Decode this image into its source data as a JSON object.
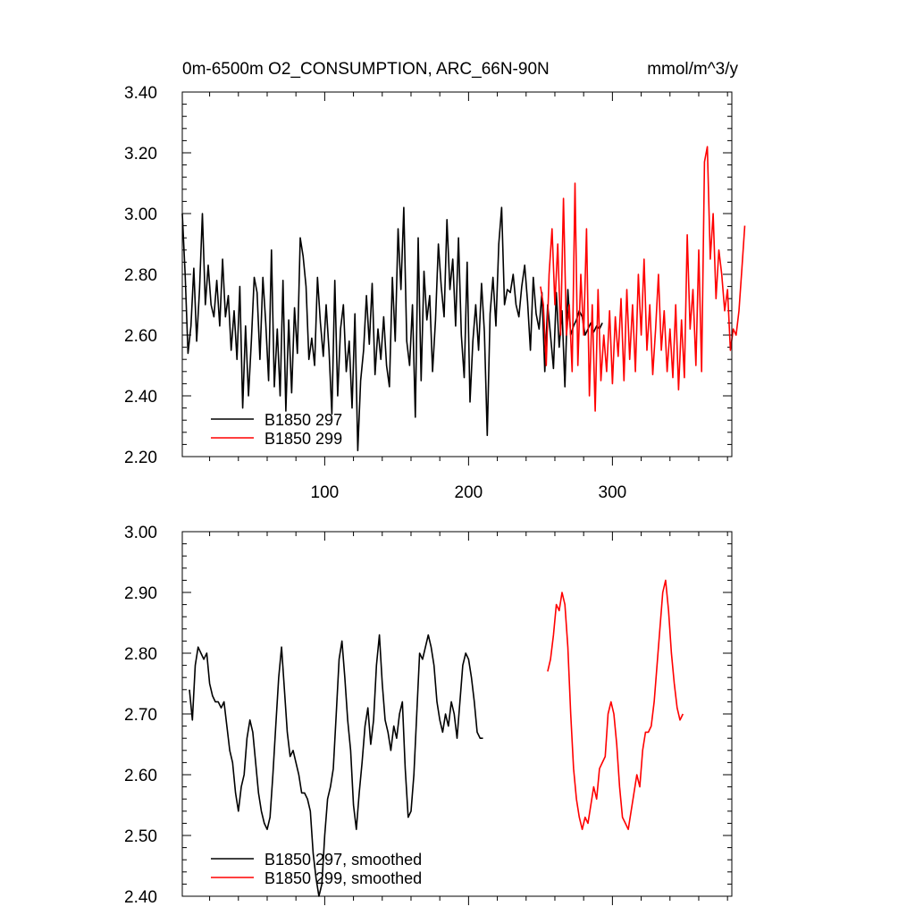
{
  "colors": {
    "series_a": "#000000",
    "series_b": "#ff0000",
    "background": "#ffffff"
  },
  "chart_data": [
    {
      "type": "line",
      "title_left": "0m-6500m O2_CONSUMPTION, ARC_66N-90N",
      "title_right": "mmol/m^3/y",
      "xlim": [
        1,
        383
      ],
      "ylim": [
        2.2,
        3.4
      ],
      "xticks": [
        100,
        200,
        300
      ],
      "xtick_labels": [
        "100",
        "200",
        "300"
      ],
      "yticks": [
        2.2,
        2.4,
        2.6,
        2.8,
        3.0,
        3.2,
        3.4
      ],
      "ytick_labels": [
        "2.20",
        "2.40",
        "2.60",
        "2.80",
        "3.00",
        "3.20",
        "3.40"
      ],
      "legend_position": "bottom-left",
      "grid": false,
      "series": [
        {
          "name": "B1850 297",
          "color": "#000000",
          "x_start": 1,
          "x_step": 2,
          "values": [
            3.0,
            2.8,
            2.54,
            2.63,
            2.82,
            2.58,
            2.75,
            3.0,
            2.7,
            2.83,
            2.7,
            2.66,
            2.78,
            2.63,
            2.85,
            2.66,
            2.73,
            2.55,
            2.68,
            2.52,
            2.76,
            2.36,
            2.63,
            2.4,
            2.58,
            2.79,
            2.74,
            2.52,
            2.79,
            2.64,
            2.45,
            2.88,
            2.43,
            2.62,
            2.4,
            2.78,
            2.35,
            2.65,
            2.41,
            2.69,
            2.54,
            2.92,
            2.86,
            2.76,
            2.52,
            2.59,
            2.5,
            2.79,
            2.64,
            2.53,
            2.7,
            2.55,
            2.34,
            2.78,
            2.4,
            2.62,
            2.7,
            2.48,
            2.58,
            2.36,
            2.67,
            2.22,
            2.45,
            2.55,
            2.73,
            2.57,
            2.77,
            2.47,
            2.62,
            2.52,
            2.66,
            2.5,
            2.43,
            2.79,
            2.58,
            2.95,
            2.75,
            3.02,
            2.58,
            2.5,
            2.7,
            2.33,
            2.92,
            2.45,
            2.81,
            2.65,
            2.73,
            2.48,
            2.65,
            2.9,
            2.76,
            2.66,
            2.98,
            2.75,
            2.85,
            2.63,
            2.92,
            2.6,
            2.46,
            2.84,
            2.38,
            2.58,
            2.7,
            2.55,
            2.77,
            2.61,
            2.27,
            2.67,
            2.79,
            2.63,
            2.9,
            3.02,
            2.7,
            2.75,
            2.74,
            2.8,
            2.7,
            2.66,
            2.76,
            2.83,
            2.71,
            2.55,
            2.79,
            2.67,
            2.62,
            2.74,
            2.48,
            2.7,
            2.6,
            2.49,
            2.74,
            2.56,
            2.68,
            2.43,
            2.75,
            2.6,
            2.63,
            2.65,
            2.68,
            2.66,
            2.6,
            2.62,
            2.64,
            2.61,
            2.63,
            2.62,
            2.64
          ]
        },
        {
          "name": "B1850 299",
          "color": "#000000",
          "hidden": true,
          "values": []
        },
        {
          "name": "B1850 299",
          "color": "#ff0000",
          "x_start": 250,
          "x_step": 2,
          "values": [
            2.76,
            2.7,
            2.5,
            2.8,
            2.95,
            2.7,
            2.9,
            2.6,
            3.05,
            2.6,
            2.7,
            2.48,
            3.1,
            2.5,
            2.8,
            2.6,
            2.95,
            2.4,
            2.7,
            2.35,
            2.75,
            2.45,
            2.6,
            2.48,
            2.68,
            2.44,
            2.66,
            2.53,
            2.72,
            2.45,
            2.75,
            2.52,
            2.7,
            2.48,
            2.8,
            2.6,
            2.85,
            2.55,
            2.7,
            2.47,
            2.62,
            2.8,
            2.55,
            2.68,
            2.48,
            2.62,
            2.46,
            2.7,
            2.42,
            2.65,
            2.46,
            2.93,
            2.62,
            2.75,
            2.5,
            2.88,
            2.48,
            3.17,
            3.22,
            2.85,
            3.0,
            2.72,
            2.88,
            2.8,
            2.68,
            2.75,
            2.55,
            2.62,
            2.6,
            2.68,
            2.82,
            2.96
          ]
        }
      ]
    },
    {
      "type": "line",
      "xlim": [
        1,
        383
      ],
      "ylim": [
        2.4,
        3.0
      ],
      "xticks": [
        100,
        200,
        300
      ],
      "yticks": [
        2.4,
        2.5,
        2.6,
        2.7,
        2.8,
        2.9,
        3.0
      ],
      "ytick_labels": [
        "2.40",
        "2.50",
        "2.60",
        "2.70",
        "2.80",
        "2.90",
        "3.00"
      ],
      "legend_position": "bottom-left",
      "grid": false,
      "series": [
        {
          "name": "B1850 297, smoothed",
          "color": "#000000",
          "x_start": 6,
          "x_step": 2,
          "values": [
            2.74,
            2.69,
            2.78,
            2.81,
            2.8,
            2.79,
            2.8,
            2.75,
            2.73,
            2.72,
            2.72,
            2.71,
            2.72,
            2.68,
            2.64,
            2.62,
            2.57,
            2.54,
            2.58,
            2.6,
            2.66,
            2.69,
            2.67,
            2.62,
            2.57,
            2.54,
            2.52,
            2.51,
            2.53,
            2.6,
            2.68,
            2.76,
            2.81,
            2.74,
            2.67,
            2.63,
            2.64,
            2.62,
            2.6,
            2.57,
            2.57,
            2.56,
            2.54,
            2.47,
            2.43,
            2.4,
            2.42,
            2.5,
            2.56,
            2.58,
            2.61,
            2.7,
            2.79,
            2.82,
            2.76,
            2.69,
            2.64,
            2.55,
            2.51,
            2.57,
            2.62,
            2.68,
            2.71,
            2.65,
            2.69,
            2.78,
            2.83,
            2.75,
            2.69,
            2.67,
            2.64,
            2.68,
            2.66,
            2.7,
            2.72,
            2.61,
            2.53,
            2.54,
            2.6,
            2.7,
            2.8,
            2.79,
            2.81,
            2.83,
            2.81,
            2.78,
            2.72,
            2.69,
            2.67,
            2.7,
            2.68,
            2.72,
            2.7,
            2.66,
            2.72,
            2.78,
            2.8,
            2.79,
            2.76,
            2.72,
            2.67,
            2.66,
            2.66
          ]
        },
        {
          "name": "B1850 299, smoothed",
          "color": "#ff0000",
          "x_start": 255,
          "x_step": 2,
          "values": [
            2.77,
            2.79,
            2.83,
            2.88,
            2.87,
            2.9,
            2.88,
            2.81,
            2.7,
            2.61,
            2.56,
            2.53,
            2.51,
            2.53,
            2.52,
            2.55,
            2.58,
            2.56,
            2.61,
            2.62,
            2.63,
            2.7,
            2.72,
            2.7,
            2.65,
            2.58,
            2.53,
            2.52,
            2.51,
            2.54,
            2.57,
            2.6,
            2.58,
            2.64,
            2.67,
            2.67,
            2.68,
            2.72,
            2.78,
            2.84,
            2.9,
            2.92,
            2.87,
            2.8,
            2.75,
            2.71,
            2.69,
            2.7
          ]
        }
      ]
    }
  ]
}
